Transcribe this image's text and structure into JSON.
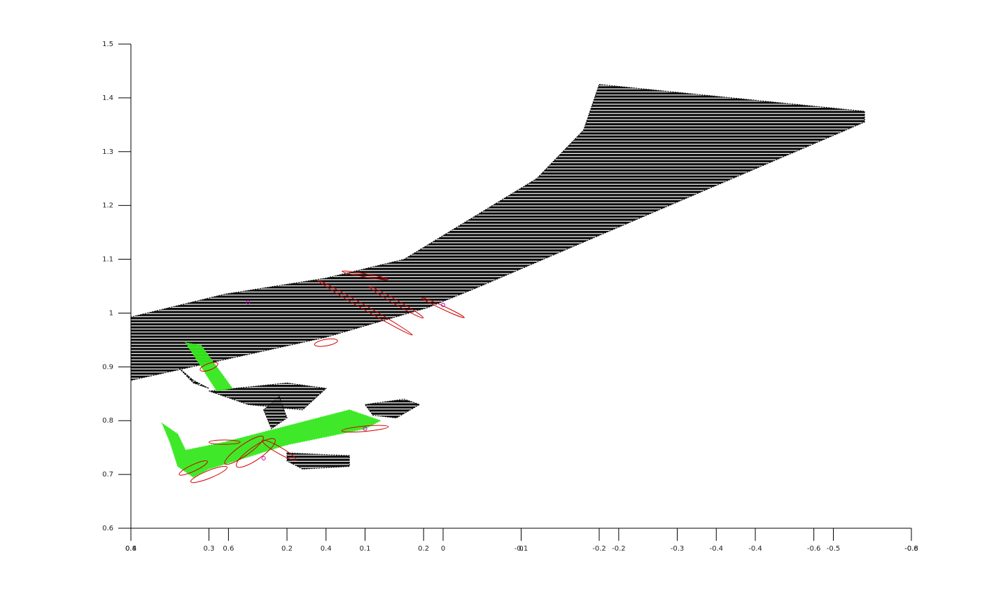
{
  "chart_data": {
    "type": "scatter",
    "title": "",
    "xlabel": "",
    "ylabel": "",
    "grid": false,
    "legend": "none",
    "ylim": [
      0.6,
      1.5
    ],
    "yticks": [
      0.6,
      0.7,
      0.8,
      0.9,
      1,
      1.1,
      1.2,
      1.3,
      1.4,
      1.5
    ],
    "x_axes": [
      {
        "ticks": [
          0.8,
          0.6,
          0.4,
          0.2,
          0,
          -0.2,
          -0.4,
          -0.6,
          -0.8
        ],
        "xlim": [
          0.8,
          -0.8
        ]
      },
      {
        "ticks": [
          0.4,
          0.3,
          0.2,
          0.1,
          0,
          -0.1,
          -0.2,
          -0.3,
          -0.4,
          -0.5,
          -0.6
        ],
        "xlim": [
          0.4,
          -0.6
        ]
      }
    ],
    "series": [
      {
        "color": "#000000",
        "regions": [
          {
            "polygon": [
              [
                -0.2,
                1.425
              ],
              [
                -0.54,
                1.375
              ],
              [
                -0.54,
                1.355
              ],
              [
                -0.04,
                1.045
              ],
              [
                0.02,
                1.01
              ],
              [
                0.15,
                0.955
              ],
              [
                0.4,
                0.875
              ],
              [
                0.5,
                0.88
              ],
              [
                0.58,
                0.915
              ],
              [
                0.45,
                0.975
              ],
              [
                0.28,
                1.035
              ],
              [
                0.15,
                1.065
              ],
              [
                0.05,
                1.1
              ],
              [
                -0.12,
                1.25
              ],
              [
                -0.18,
                1.34
              ]
            ]
          },
          {
            "polygon": [
              [
                0.3,
                0.855
              ],
              [
                0.2,
                0.87
              ],
              [
                0.15,
                0.86
              ],
              [
                0.18,
                0.82
              ],
              [
                0.25,
                0.83
              ],
              [
                0.28,
                0.845
              ]
            ]
          },
          {
            "polygon": [
              [
                0.1,
                0.83
              ],
              [
                0.05,
                0.84
              ],
              [
                0.03,
                0.83
              ],
              [
                0.06,
                0.805
              ],
              [
                0.09,
                0.81
              ]
            ]
          },
          {
            "polygon": [
              [
                0.2,
                0.74
              ],
              [
                0.12,
                0.735
              ],
              [
                0.12,
                0.715
              ],
              [
                0.18,
                0.71
              ],
              [
                0.2,
                0.725
              ]
            ]
          },
          {
            "polygon": [
              [
                0.21,
                0.845
              ],
              [
                0.2,
                0.805
              ],
              [
                0.22,
                0.785
              ],
              [
                0.23,
                0.82
              ]
            ]
          },
          {
            "polygon": [
              [
                0.34,
                0.9
              ],
              [
                0.32,
                0.87
              ],
              [
                0.3,
                0.86
              ],
              [
                0.32,
                0.875
              ]
            ]
          }
        ]
      },
      {
        "color": "#35e81e",
        "regions": [
          {
            "polygon": [
              [
                0.33,
                0.945
              ],
              [
                0.31,
                0.94
              ],
              [
                0.27,
                0.86
              ],
              [
                0.29,
                0.855
              ]
            ]
          },
          {
            "polygon": [
              [
                0.36,
                0.795
              ],
              [
                0.35,
                0.76
              ],
              [
                0.34,
                0.715
              ],
              [
                0.32,
                0.695
              ],
              [
                0.3,
                0.71
              ],
              [
                0.2,
                0.755
              ],
              [
                0.1,
                0.785
              ],
              [
                0.08,
                0.8
              ],
              [
                0.12,
                0.82
              ],
              [
                0.2,
                0.79
              ],
              [
                0.28,
                0.76
              ],
              [
                0.33,
                0.745
              ],
              [
                0.34,
                0.775
              ]
            ]
          }
        ]
      },
      {
        "color": "#d00000",
        "ellipses": [
          {
            "cx": 0.3,
            "cy": 0.7,
            "rx": 0.025,
            "ry": 0.007,
            "angle": 22
          },
          {
            "cx": 0.32,
            "cy": 0.712,
            "rx": 0.02,
            "ry": 0.006,
            "angle": 25
          },
          {
            "cx": 0.255,
            "cy": 0.745,
            "rx": 0.03,
            "ry": 0.01,
            "angle": 35
          },
          {
            "cx": 0.24,
            "cy": 0.74,
            "rx": 0.03,
            "ry": 0.012,
            "angle": 35
          },
          {
            "cx": 0.21,
            "cy": 0.745,
            "rx": 0.025,
            "ry": 0.006,
            "angle": -30
          },
          {
            "cx": 0.28,
            "cy": 0.76,
            "rx": 0.02,
            "ry": 0.004,
            "angle": 0
          },
          {
            "cx": 0.1,
            "cy": 0.785,
            "rx": 0.03,
            "ry": 0.005,
            "angle": 5
          },
          {
            "cx": 0.3,
            "cy": 0.9,
            "rx": 0.012,
            "ry": 0.006,
            "angle": 20
          },
          {
            "cx": 0.1,
            "cy": 1.01,
            "rx": 0.07,
            "ry": 0.004,
            "angle": -30
          },
          {
            "cx": 0.06,
            "cy": 1.02,
            "rx": 0.04,
            "ry": 0.004,
            "angle": -30
          },
          {
            "cx": 0.0,
            "cy": 1.01,
            "rx": 0.03,
            "ry": 0.003,
            "angle": -25
          },
          {
            "cx": 0.15,
            "cy": 0.945,
            "rx": 0.015,
            "ry": 0.006,
            "angle": 10
          },
          {
            "cx": 0.1,
            "cy": 1.07,
            "rx": 0.03,
            "ry": 0.003,
            "angle": -10
          }
        ]
      },
      {
        "color": "#cc00cc",
        "points": [
          [
            0.25,
            1.02
          ],
          [
            0.0,
            1.015
          ],
          [
            0.1,
            0.785
          ],
          [
            0.23,
            0.73
          ]
        ]
      }
    ]
  }
}
